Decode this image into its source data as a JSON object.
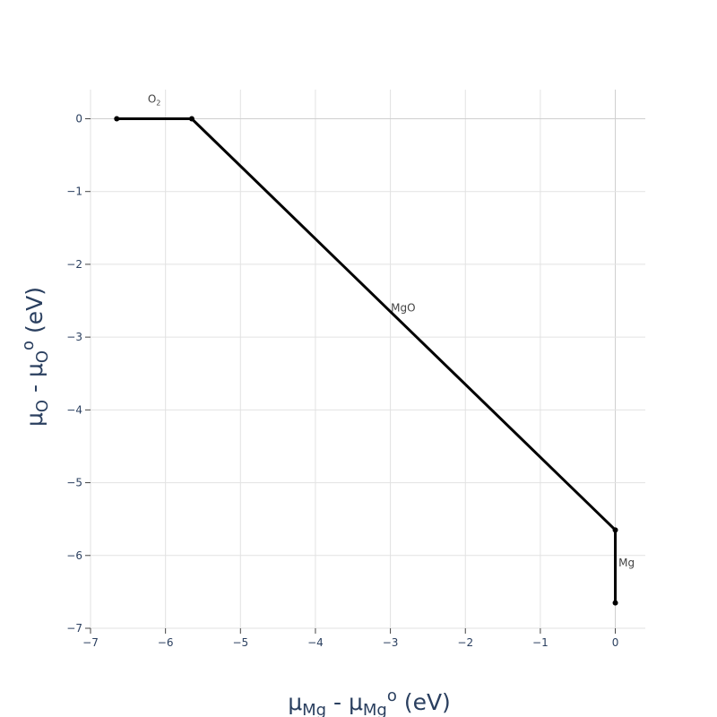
{
  "chart_data": {
    "type": "line",
    "title": "",
    "xlabel": {
      "base": "μ",
      "sub": "Mg",
      "mid": " - μ",
      "sub2": "Mg",
      "sup": "o",
      "tail": " (eV)"
    },
    "ylabel": {
      "base": "μ",
      "sub": "O",
      "mid": " - μ",
      "sub2": "O",
      "sup": "o",
      "tail": " (eV)"
    },
    "xlim": [
      -7,
      0.4
    ],
    "ylim": [
      -7,
      0.4
    ],
    "xticks": [
      -7,
      -6,
      -5,
      -4,
      -3,
      -2,
      -1,
      0
    ],
    "yticks": [
      0,
      -1,
      -2,
      -3,
      -4,
      -5,
      -6,
      -7
    ],
    "xtick_labels": [
      "−7",
      "−6",
      "−5",
      "−4",
      "−3",
      "−2",
      "−1",
      "0"
    ],
    "ytick_labels": [
      "0",
      "−1",
      "−2",
      "−3",
      "−4",
      "−5",
      "−6",
      "−7"
    ],
    "grid": true,
    "line_color": "#000000",
    "series": [
      {
        "x": [
          -6.65,
          -5.65
        ],
        "y": [
          0,
          0
        ]
      },
      {
        "x": [
          -5.65,
          0
        ],
        "y": [
          0,
          -5.65
        ]
      },
      {
        "x": [
          0,
          0
        ],
        "y": [
          -5.65,
          -6.65
        ]
      }
    ],
    "vertices": [
      {
        "x": -6.65,
        "y": 0
      },
      {
        "x": -5.65,
        "y": 0
      },
      {
        "x": 0,
        "y": -5.65
      },
      {
        "x": 0,
        "y": -6.65
      }
    ],
    "annotations": [
      {
        "base": "O",
        "sub": "2",
        "x": -6.15,
        "y": 0.22
      },
      {
        "base": "MgO",
        "sub": "",
        "x": -2.83,
        "y": -2.65
      },
      {
        "base": "Mg",
        "sub": "",
        "x": 0.15,
        "y": -6.15
      }
    ]
  }
}
